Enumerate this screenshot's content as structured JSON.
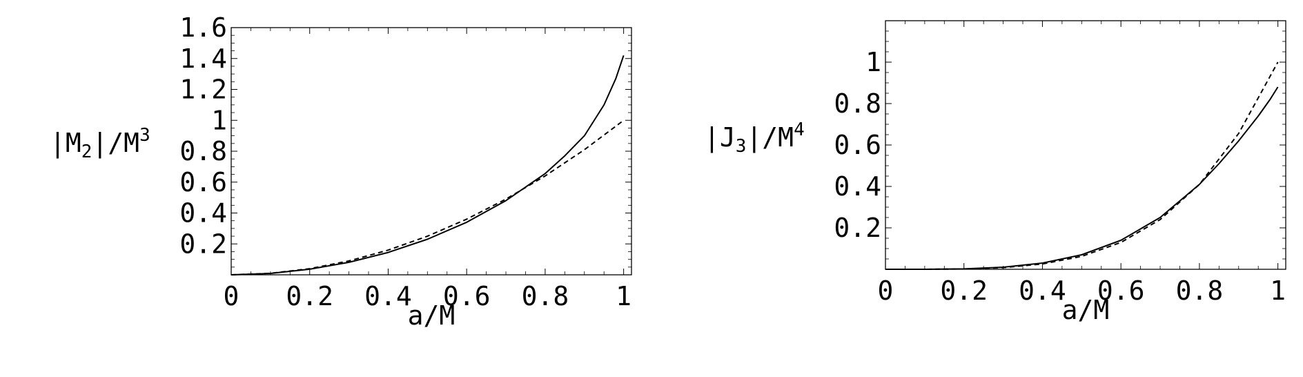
{
  "chart_data": [
    {
      "type": "line",
      "title": "",
      "xlabel": "a/M",
      "ylabel": {
        "pre": "|M",
        "sub": "2",
        "mid": "|/M",
        "sup": "3"
      },
      "xlim": [
        0,
        1.02
      ],
      "ylim": [
        0,
        1.6
      ],
      "x_ticks": [
        0,
        0.2,
        0.4,
        0.6,
        0.8,
        1
      ],
      "x_tick_labels": [
        "0",
        "0.2",
        "0.4",
        "0.6",
        "0.8",
        "1"
      ],
      "y_ticks": [
        0.2,
        0.4,
        0.6,
        0.8,
        1,
        1.2,
        1.4,
        1.6
      ],
      "y_tick_labels": [
        "0.2",
        "0.4",
        "0.6",
        "0.8",
        "1",
        "1.2",
        "1.4",
        "1.6"
      ],
      "grid": false,
      "series": [
        {
          "style": "solid",
          "x": [
            0,
            0.1,
            0.2,
            0.3,
            0.4,
            0.5,
            0.6,
            0.7,
            0.8,
            0.85,
            0.9,
            0.95,
            0.98,
            1.0
          ],
          "y": [
            0,
            0.009,
            0.036,
            0.081,
            0.145,
            0.23,
            0.34,
            0.48,
            0.655,
            0.77,
            0.9,
            1.1,
            1.27,
            1.42
          ]
        },
        {
          "style": "dashed",
          "x": [
            0,
            0.1,
            0.2,
            0.3,
            0.4,
            0.5,
            0.6,
            0.7,
            0.8,
            0.9,
            1.0
          ],
          "y": [
            0,
            0.01,
            0.04,
            0.09,
            0.16,
            0.25,
            0.36,
            0.49,
            0.64,
            0.81,
            1.0
          ]
        }
      ]
    },
    {
      "type": "line",
      "title": "",
      "xlabel": "a/M",
      "ylabel": {
        "pre": "|J",
        "sub": "3",
        "mid": "|/M",
        "sup": "4"
      },
      "xlim": [
        0,
        1.02
      ],
      "ylim": [
        0,
        1.2
      ],
      "x_ticks": [
        0,
        0.2,
        0.4,
        0.6,
        0.8,
        1
      ],
      "x_tick_labels": [
        "0",
        "0.2",
        "0.4",
        "0.6",
        "0.8",
        "1"
      ],
      "y_ticks": [
        0.2,
        0.4,
        0.6,
        0.8,
        1
      ],
      "y_tick_labels": [
        "0.2",
        "0.4",
        "0.6",
        "0.8",
        "1"
      ],
      "grid": false,
      "series": [
        {
          "style": "solid",
          "x": [
            0,
            0.1,
            0.2,
            0.3,
            0.4,
            0.5,
            0.6,
            0.7,
            0.8,
            0.85,
            0.9,
            0.95,
            0.98,
            1.0
          ],
          "y": [
            0,
            0.0001,
            0.002,
            0.01,
            0.03,
            0.07,
            0.14,
            0.25,
            0.41,
            0.51,
            0.62,
            0.74,
            0.82,
            0.88
          ]
        },
        {
          "style": "dashed",
          "x": [
            0,
            0.1,
            0.2,
            0.3,
            0.4,
            0.5,
            0.6,
            0.7,
            0.8,
            0.9,
            1.0
          ],
          "y": [
            0,
            0.0001,
            0.0016,
            0.0081,
            0.0256,
            0.0625,
            0.1296,
            0.2401,
            0.4096,
            0.6561,
            1.0
          ]
        }
      ]
    }
  ]
}
